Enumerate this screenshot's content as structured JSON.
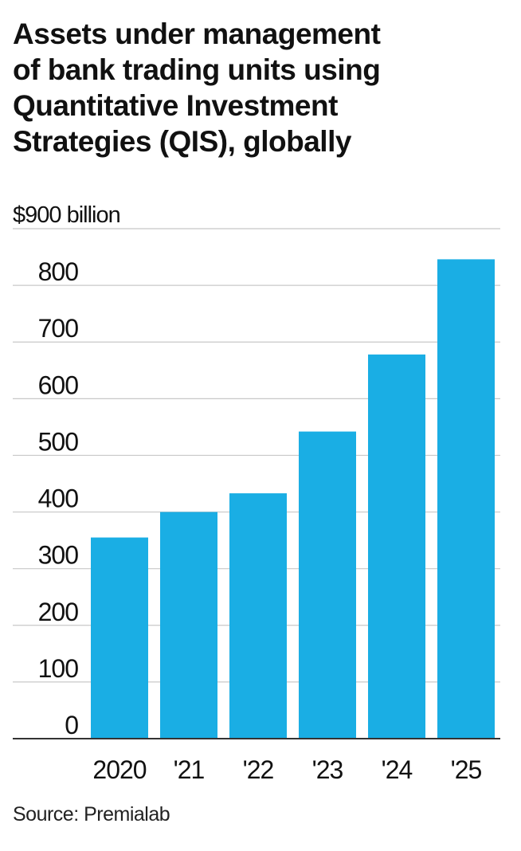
{
  "chart_data": {
    "type": "bar",
    "title_lines": [
      "Assets under management",
      "of bank trading units using",
      "Quantitative Investment",
      "Strategies (QIS), globally"
    ],
    "xlabel": "",
    "ylabel": "",
    "unit_label": "$900 billion",
    "categories": [
      "2020",
      "'21",
      "'22",
      "'23",
      "'24",
      "'25"
    ],
    "values": [
      355,
      400,
      433,
      542,
      678,
      846
    ],
    "ylim": [
      0,
      900
    ],
    "y_ticks": [
      0,
      100,
      200,
      300,
      400,
      500,
      600,
      700,
      800
    ],
    "grid": true,
    "bar_color": "#1aaee4",
    "source": "Source: Premialab"
  }
}
